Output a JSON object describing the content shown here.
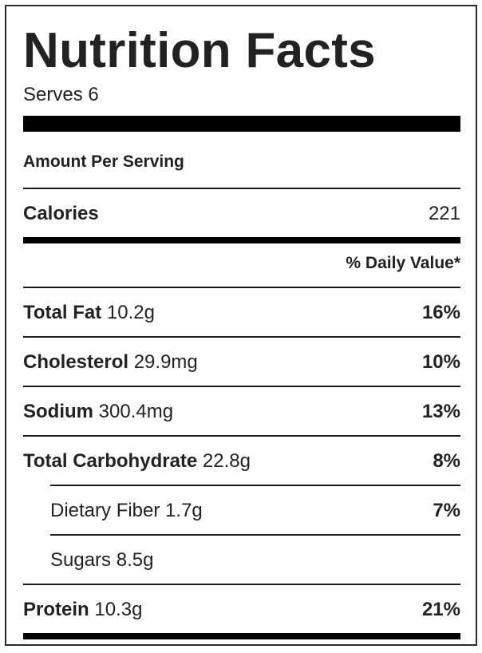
{
  "label": {
    "title": "Nutrition Facts",
    "serves": "Serves 6",
    "amount_per_serving": "Amount Per Serving",
    "calories": {
      "label": "Calories",
      "value": "221"
    },
    "daily_value_header": "% Daily Value*",
    "nutrients": [
      {
        "name": "Total Fat",
        "amount": "10.2g",
        "dv": "16%"
      },
      {
        "name": "Cholesterol",
        "amount": "29.9mg",
        "dv": "10%"
      },
      {
        "name": "Sodium",
        "amount": "300.4mg",
        "dv": "13%"
      },
      {
        "name": "Total Carbohydrate",
        "amount": "22.8g",
        "dv": "8%"
      },
      {
        "name": "Dietary Fiber",
        "amount": "1.7g",
        "dv": "7%"
      },
      {
        "name": "Sugars",
        "amount": "8.5g",
        "dv": ""
      },
      {
        "name": "Protein",
        "amount": "10.3g",
        "dv": "21%"
      }
    ]
  }
}
